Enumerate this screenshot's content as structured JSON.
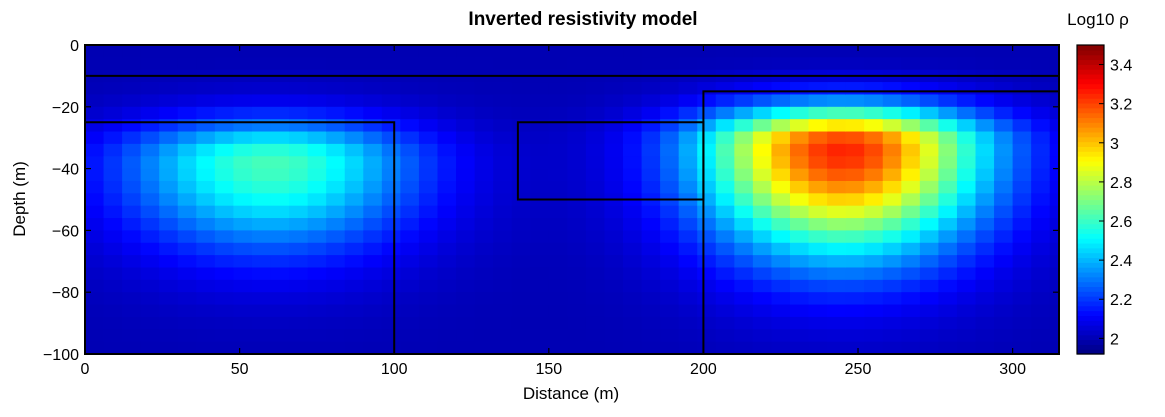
{
  "chart_data": {
    "type": "heatmap",
    "title": "Inverted resistivity model",
    "xlabel": "Distance (m)",
    "ylabel": "Depth (m)",
    "xlim": [
      0,
      315
    ],
    "ylim": [
      -100,
      0
    ],
    "xticks": [
      "0",
      "50",
      "100",
      "150",
      "200",
      "250",
      "300"
    ],
    "xtick_values": [
      0,
      50,
      100,
      150,
      200,
      250,
      300
    ],
    "yticks": [
      "0",
      "−20",
      "−40",
      "−60",
      "−80",
      "−100"
    ],
    "ytick_values": [
      0,
      -20,
      -40,
      -60,
      -80,
      -100
    ],
    "colorbar": {
      "label": "Log10 ρ",
      "range": [
        1.92,
        3.5
      ],
      "ticks": [
        "2",
        "2.2",
        "2.4",
        "2.6",
        "2.8",
        "3",
        "3.2",
        "3.4"
      ],
      "tick_values": [
        2.0,
        2.2,
        2.4,
        2.6,
        2.8,
        3.0,
        3.2,
        3.4
      ],
      "colormap": "jet"
    },
    "background_value": 2.0,
    "anomalies": [
      {
        "center_x": 60,
        "center_depth": -38,
        "peak_log10_rho": 2.62,
        "extent_x": [
          10,
          125
        ],
        "extent_depth": [
          -15,
          -90
        ]
      },
      {
        "center_x": 245,
        "center_depth": -33,
        "peak_log10_rho": 3.25,
        "extent_x": [
          195,
          305
        ],
        "extent_depth": [
          -12,
          -95
        ]
      }
    ],
    "model_boundaries": [
      {
        "type": "layer",
        "depth": -10
      },
      {
        "type": "block",
        "x": [
          0,
          100
        ],
        "depth": [
          -25,
          -100
        ]
      },
      {
        "type": "block",
        "x": [
          140,
          200
        ],
        "depth": [
          -25,
          -50
        ]
      },
      {
        "type": "block",
        "x": [
          200,
          315
        ],
        "depth": [
          -15,
          -100
        ]
      }
    ]
  }
}
